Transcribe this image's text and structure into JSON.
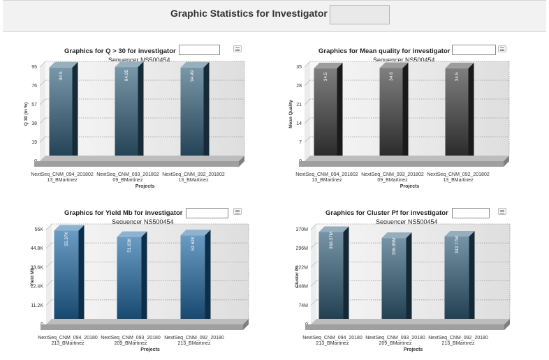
{
  "header": {
    "title": "Graphic Statistics for Investigator"
  },
  "panels": [
    {
      "title": "Graphics for Q > 30 for investigator",
      "subtitle": "Sequencer NS500454",
      "chart_data": {
        "type": "bar",
        "categories": [
          "NextSeq_CNM_094_20180213_BMartinez",
          "NextSeq_CNM_093_20180209_BMartinez",
          "NextSeq_CNM_092_20180213_BMartinez"
        ],
        "category_lines": [
          [
            "NextSeq_CNM_094_201802",
            "13_BMartinez"
          ],
          [
            "NextSeq_CNM_093_201802",
            "09_BMartinez"
          ],
          [
            "NextSeq_CNM_092_201802",
            "13_BMartinez"
          ]
        ],
        "values": [
          94.5,
          94.95,
          94.49
        ],
        "value_labels": [
          "94.5",
          "94.95",
          "94.49"
        ],
        "ylabel": "Q 30 (in %)",
        "xlabel": "Projects",
        "ylim": [
          0,
          95
        ],
        "yticks": [
          0,
          19,
          38,
          57,
          76,
          95
        ],
        "ytick_labels": [
          "0",
          "19",
          "38",
          "57",
          "76",
          "95"
        ],
        "grid": true,
        "color": "#2f607c"
      }
    },
    {
      "title": "Graphics for Mean quality for investigator",
      "subtitle": "Sequencer NS500454",
      "chart_data": {
        "type": "bar",
        "categories": [
          "NextSeq_CNM_094_20180213_BMartinez",
          "NextSeq_CNM_093_20180209_BMartinez",
          "NextSeq_CNM_092_20180213_BMartinez"
        ],
        "category_lines": [
          [
            "NextSeq_CNM_094_201802",
            "13_BMartinez"
          ],
          [
            "NextSeq_CNM_093_201802",
            "09_BMartinez"
          ],
          [
            "NextSeq_CNM_092_201802",
            "13_BMartinez"
          ]
        ],
        "values": [
          34.5,
          34.6,
          34.5
        ],
        "value_labels": [
          "34.5",
          "34.6",
          "34.5"
        ],
        "ylabel": "Mean Quality",
        "xlabel": "Projects",
        "ylim": [
          0,
          35
        ],
        "yticks": [
          0,
          7,
          14,
          21,
          28,
          35
        ],
        "ytick_labels": [
          "0",
          "7",
          "14",
          "21",
          "28",
          "35"
        ],
        "grid": true,
        "color": "#3a3a3a"
      }
    },
    {
      "title": "Graphics for Yield Mb for investigator",
      "subtitle": "Sequencer NS500454",
      "chart_data": {
        "type": "bar",
        "categories": [
          "NextSeq_CNM_094_20180213_BMartinez",
          "NextSeq_CNM_093_20180209_BMartinez",
          "NextSeq_CNM_092_20180213_BMartinez"
        ],
        "category_lines": [
          [
            "NextSeq_CNM_094_20180",
            "213_BMartinez"
          ],
          [
            "NextSeq_CNM_093_20180",
            "209_BMartinez"
          ],
          [
            "NextSeq_CNM_092_20180",
            "213_BMartinez"
          ]
        ],
        "values": [
          55370,
          51630,
          52620
        ],
        "value_labels": [
          "55.37K",
          "51.63K",
          "52.62K"
        ],
        "ylabel": "Yield Mb",
        "xlabel": "Projects",
        "ylim": [
          0,
          56000
        ],
        "yticks": [
          0,
          11200,
          22400,
          33600,
          44800,
          56000
        ],
        "ytick_labels": [
          "0",
          "11.2K",
          "22.4K",
          "33.6K",
          "44.8K",
          "56K"
        ],
        "grid": true,
        "color": "#1b67a3"
      }
    },
    {
      "title": "Graphics for Cluster Pf for investigator",
      "subtitle": "Sequencer NS500454",
      "chart_data": {
        "type": "bar",
        "categories": [
          "NextSeq_CNM_094_20180213_BMartinez",
          "NextSeq_CNM_093_20180209_BMartinez",
          "NextSeq_CNM_092_20180213_BMartinez"
        ],
        "category_lines": [
          [
            "NextSeq_CNM_094_20180",
            "213_BMartinez"
          ],
          [
            "NextSeq_CNM_093_20180",
            "209_BMartinez"
          ],
          [
            "NextSeq_CNM_092_20180",
            "213_BMartinez"
          ]
        ],
        "values": [
          360370000,
          336950000,
          342770000
        ],
        "value_labels": [
          "360.37M",
          "336.95M",
          "342.77M"
        ],
        "ylabel": "Cluster Pf",
        "xlabel": "Projects",
        "ylim": [
          0,
          370000000
        ],
        "yticks": [
          0,
          74000000,
          148000000,
          222000000,
          296000000,
          370000000
        ],
        "ytick_labels": [
          "0",
          "74M",
          "148M",
          "222M",
          "296M",
          "370M"
        ],
        "grid": true,
        "color": "#2d5a76"
      }
    }
  ]
}
